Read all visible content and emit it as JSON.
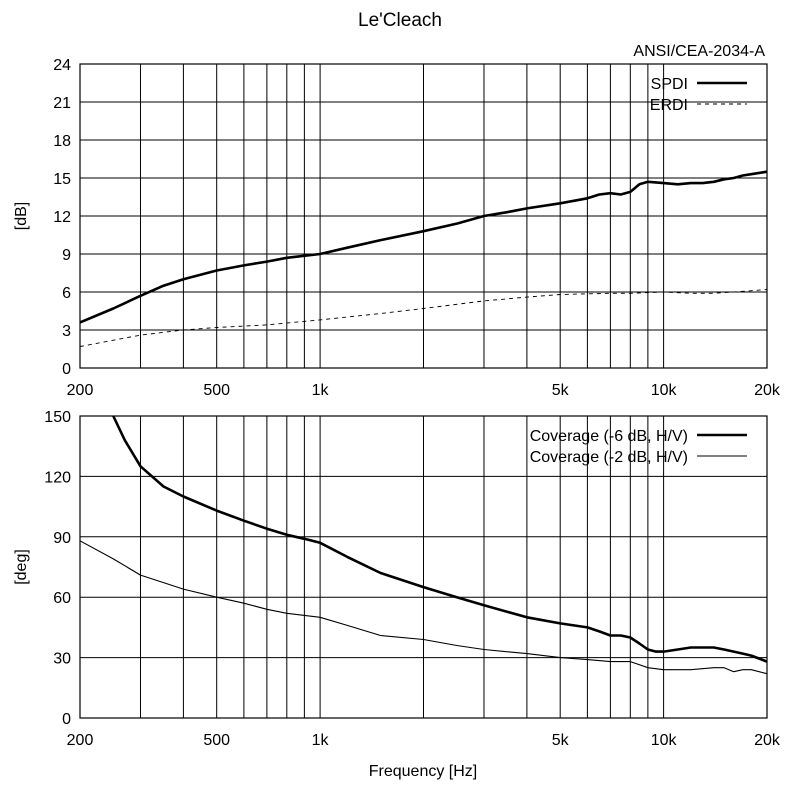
{
  "title": "Le'Cleach",
  "xlabel": "Frequency [Hz]",
  "chart_data": [
    {
      "type": "line",
      "title": "Le'Cleach",
      "subtitle": "ANSI/CEA-2034-A",
      "xlabel": "",
      "ylabel": "[dB]",
      "xscale": "log",
      "xlim": [
        200,
        20000
      ],
      "ylim": [
        0,
        24
      ],
      "x_ticks": [
        200,
        500,
        1000,
        5000,
        10000,
        20000
      ],
      "x_tick_labels": [
        "200",
        "500",
        "1k",
        "5k",
        "10k",
        "20k"
      ],
      "y_ticks": [
        0,
        3,
        6,
        9,
        12,
        15,
        18,
        21,
        24
      ],
      "grid": true,
      "legend": "top-right",
      "series": [
        {
          "name": "SPDI",
          "style": "thick-solid",
          "x": [
            200,
            250,
            300,
            350,
            400,
            500,
            600,
            700,
            800,
            1000,
            1200,
            1500,
            2000,
            2500,
            3000,
            3500,
            4000,
            5000,
            6000,
            6500,
            7000,
            7500,
            8000,
            8500,
            9000,
            10000,
            11000,
            12000,
            13000,
            14000,
            15000,
            16000,
            17000,
            18000,
            20000
          ],
          "values": [
            3.6,
            4.7,
            5.7,
            6.5,
            7.0,
            7.7,
            8.1,
            8.4,
            8.7,
            9.0,
            9.5,
            10.1,
            10.8,
            11.4,
            12.0,
            12.3,
            12.6,
            13.0,
            13.4,
            13.7,
            13.8,
            13.7,
            13.9,
            14.5,
            14.7,
            14.6,
            14.5,
            14.6,
            14.6,
            14.7,
            14.9,
            15.0,
            15.2,
            15.3,
            15.5
          ]
        },
        {
          "name": "ERDI",
          "style": "dashed",
          "x": [
            200,
            300,
            400,
            500,
            700,
            1000,
            1500,
            2000,
            3000,
            4000,
            5000,
            7000,
            8000,
            10000,
            12000,
            14000,
            16000,
            18000,
            20000
          ],
          "values": [
            1.7,
            2.6,
            3.0,
            3.2,
            3.4,
            3.8,
            4.3,
            4.7,
            5.3,
            5.6,
            5.8,
            5.9,
            5.9,
            6.0,
            5.9,
            5.9,
            6.0,
            6.1,
            6.2
          ]
        }
      ]
    },
    {
      "type": "line",
      "xlabel": "Frequency [Hz]",
      "ylabel": "[deg]",
      "xscale": "log",
      "xlim": [
        200,
        20000
      ],
      "ylim": [
        0,
        150
      ],
      "x_ticks": [
        200,
        500,
        1000,
        5000,
        10000,
        20000
      ],
      "x_tick_labels": [
        "200",
        "500",
        "1k",
        "5k",
        "10k",
        "20k"
      ],
      "y_ticks": [
        0,
        30,
        60,
        90,
        120,
        150
      ],
      "grid": true,
      "legend": "top-right",
      "series": [
        {
          "name": "Coverage (-6 dB, H/V)",
          "style": "thick-solid",
          "x": [
            250,
            270,
            300,
            350,
            400,
            500,
            600,
            700,
            800,
            900,
            1000,
            1200,
            1500,
            2000,
            2500,
            3000,
            4000,
            5000,
            6000,
            6500,
            7000,
            7500,
            8000,
            8500,
            9000,
            9500,
            10000,
            11000,
            12000,
            13000,
            14000,
            15000,
            16000,
            17000,
            18000,
            20000
          ],
          "values": [
            150,
            138,
            125,
            115,
            110,
            103,
            98,
            94,
            91,
            89,
            87,
            80,
            72,
            65,
            60,
            56,
            50,
            47,
            45,
            43,
            41,
            41,
            40,
            37,
            34,
            33,
            33,
            34,
            35,
            35,
            35,
            34,
            33,
            32,
            31,
            28
          ]
        },
        {
          "name": "Coverage (-2 dB, H/V)",
          "style": "solid",
          "x": [
            200,
            250,
            300,
            400,
            500,
            600,
            700,
            800,
            1000,
            1200,
            1500,
            2000,
            2500,
            3000,
            4000,
            5000,
            6000,
            7000,
            8000,
            9000,
            10000,
            12000,
            14000,
            15000,
            16000,
            17000,
            18000,
            20000
          ],
          "values": [
            88,
            79,
            71,
            64,
            60,
            57,
            54,
            52,
            50,
            46,
            41,
            39,
            36,
            34,
            32,
            30,
            29,
            28,
            28,
            25,
            24,
            24,
            25,
            25,
            23,
            24,
            24,
            22
          ]
        }
      ]
    }
  ]
}
